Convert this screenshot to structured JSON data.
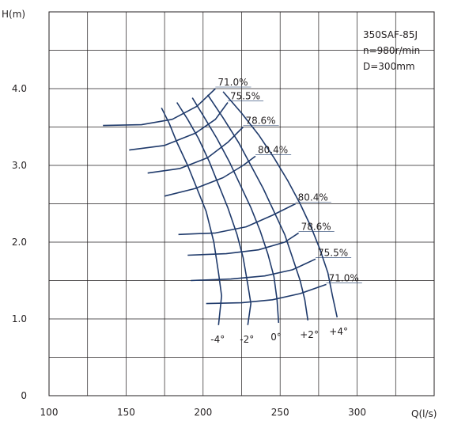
{
  "chart_data": {
    "type": "line",
    "title": "",
    "xlabel": "Q(l/s)",
    "ylabel": "H(m)",
    "xlim": [
      100,
      350
    ],
    "ylim": [
      0,
      5.0
    ],
    "x_ticks": [
      "100",
      "150",
      "200",
      "250",
      "300"
    ],
    "y_ticks": [
      "0",
      "1.0",
      "2.0",
      "3.0",
      "4.0"
    ],
    "grid": true,
    "info_lines": [
      "350SAF-85J",
      "n=980r/min",
      "D=300mm"
    ],
    "colors": {
      "curve": "#1f3a6b",
      "grid": "#231f20",
      "text": "#231f20"
    },
    "angle_curves": [
      {
        "name": "-4°",
        "points": [
          [
            173,
            3.75
          ],
          [
            178,
            3.55
          ],
          [
            183,
            3.3
          ],
          [
            190,
            3.0
          ],
          [
            196,
            2.7
          ],
          [
            202,
            2.4
          ],
          [
            207,
            2.0
          ],
          [
            210,
            1.6
          ],
          [
            212,
            1.3
          ],
          [
            210,
            0.92
          ]
        ]
      },
      {
        "name": "-2°",
        "points": [
          [
            183,
            3.82
          ],
          [
            190,
            3.6
          ],
          [
            197,
            3.35
          ],
          [
            204,
            3.05
          ],
          [
            210,
            2.75
          ],
          [
            216,
            2.45
          ],
          [
            222,
            2.1
          ],
          [
            226,
            1.8
          ],
          [
            229,
            1.45
          ],
          [
            231,
            1.2
          ],
          [
            229,
            0.92
          ]
        ]
      },
      {
        "name": "0°",
        "points": [
          [
            193,
            3.88
          ],
          [
            201,
            3.62
          ],
          [
            209,
            3.35
          ],
          [
            217,
            3.05
          ],
          [
            224,
            2.75
          ],
          [
            231,
            2.45
          ],
          [
            237,
            2.15
          ],
          [
            242,
            1.85
          ],
          [
            246,
            1.55
          ],
          [
            248,
            1.25
          ],
          [
            249,
            0.95
          ]
        ]
      },
      {
        "name": "+2°",
        "points": [
          [
            203,
            3.92
          ],
          [
            213,
            3.62
          ],
          [
            223,
            3.3
          ],
          [
            231,
            3.0
          ],
          [
            239,
            2.7
          ],
          [
            246,
            2.4
          ],
          [
            253,
            2.1
          ],
          [
            258,
            1.8
          ],
          [
            263,
            1.5
          ],
          [
            266,
            1.25
          ],
          [
            268,
            0.98
          ]
        ]
      },
      {
        "name": "+4°",
        "points": [
          [
            213,
            3.96
          ],
          [
            225,
            3.68
          ],
          [
            236,
            3.4
          ],
          [
            246,
            3.1
          ],
          [
            255,
            2.8
          ],
          [
            263,
            2.5
          ],
          [
            270,
            2.2
          ],
          [
            276,
            1.9
          ],
          [
            281,
            1.6
          ],
          [
            284,
            1.3
          ],
          [
            287,
            1.02
          ]
        ]
      }
    ],
    "efficiency_curves": [
      {
        "label": "71.0%",
        "side": "upper",
        "points": [
          [
            135,
            3.52
          ],
          [
            160,
            3.53
          ],
          [
            180,
            3.6
          ],
          [
            196,
            3.77
          ],
          [
            208,
            4.0
          ]
        ]
      },
      {
        "label": "75.5%",
        "side": "upper",
        "points": [
          [
            152,
            3.2
          ],
          [
            175,
            3.26
          ],
          [
            195,
            3.42
          ],
          [
            208,
            3.6
          ],
          [
            216,
            3.82
          ]
        ]
      },
      {
        "label": "78.6%",
        "side": "upper",
        "points": [
          [
            164,
            2.9
          ],
          [
            185,
            2.96
          ],
          [
            203,
            3.1
          ],
          [
            216,
            3.3
          ],
          [
            226,
            3.5
          ]
        ]
      },
      {
        "label": "80.4%",
        "side": "upper",
        "points": [
          [
            175,
            2.6
          ],
          [
            195,
            2.7
          ],
          [
            213,
            2.84
          ],
          [
            226,
            3.0
          ],
          [
            234,
            3.12
          ]
        ]
      },
      {
        "label": "80.4%",
        "side": "lower",
        "points": [
          [
            184,
            2.1
          ],
          [
            208,
            2.12
          ],
          [
            228,
            2.2
          ],
          [
            245,
            2.35
          ],
          [
            260,
            2.5
          ]
        ]
      },
      {
        "label": "78.6%",
        "side": "lower",
        "points": [
          [
            190,
            1.83
          ],
          [
            215,
            1.85
          ],
          [
            236,
            1.9
          ],
          [
            253,
            2.0
          ],
          [
            262,
            2.12
          ]
        ]
      },
      {
        "label": "75.5%",
        "side": "lower",
        "points": [
          [
            192,
            1.5
          ],
          [
            218,
            1.52
          ],
          [
            240,
            1.56
          ],
          [
            258,
            1.64
          ],
          [
            273,
            1.78
          ]
        ]
      },
      {
        "label": "71.0%",
        "side": "lower",
        "points": [
          [
            202,
            1.2
          ],
          [
            225,
            1.21
          ],
          [
            245,
            1.25
          ],
          [
            263,
            1.33
          ],
          [
            280,
            1.45
          ]
        ]
      }
    ]
  }
}
